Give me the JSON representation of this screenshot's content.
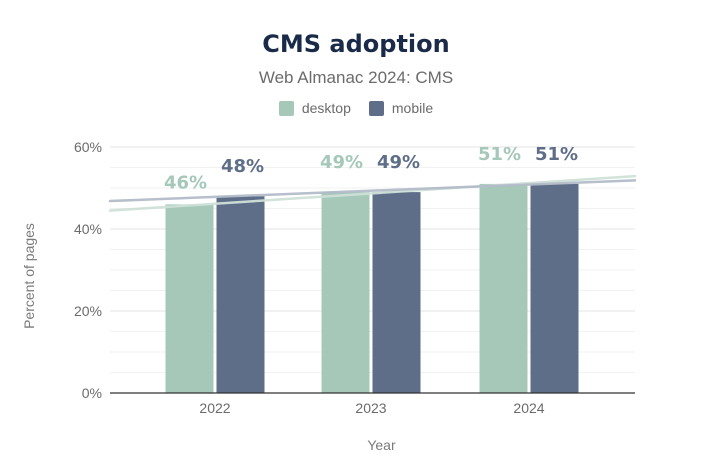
{
  "title": "CMS adoption",
  "subtitle": "Web Almanac 2024: CMS",
  "colors": {
    "desktop": "#a5c8b9",
    "mobile": "#5e6e89",
    "grid": "#e9e9e9",
    "axis": "#333333"
  },
  "chart_data": {
    "type": "bar",
    "title": "CMS adoption",
    "subtitle": "Web Almanac 2024: CMS",
    "xlabel": "Year",
    "ylabel": "Percent of pages",
    "categories": [
      "2022",
      "2023",
      "2024"
    ],
    "series": [
      {
        "name": "desktop",
        "values": [
          46,
          49,
          51
        ],
        "labels": [
          "46%",
          "49%",
          "51%"
        ]
      },
      {
        "name": "mobile",
        "values": [
          48,
          49,
          51
        ],
        "labels": [
          "48%",
          "49%",
          "51%"
        ]
      }
    ],
    "ylim": [
      0,
      60
    ],
    "yticks": [
      0,
      20,
      40,
      60
    ],
    "ytick_labels": [
      "0%",
      "20%",
      "40%",
      "60%"
    ],
    "trendlines": true,
    "grid": true,
    "legend": "top-center"
  }
}
